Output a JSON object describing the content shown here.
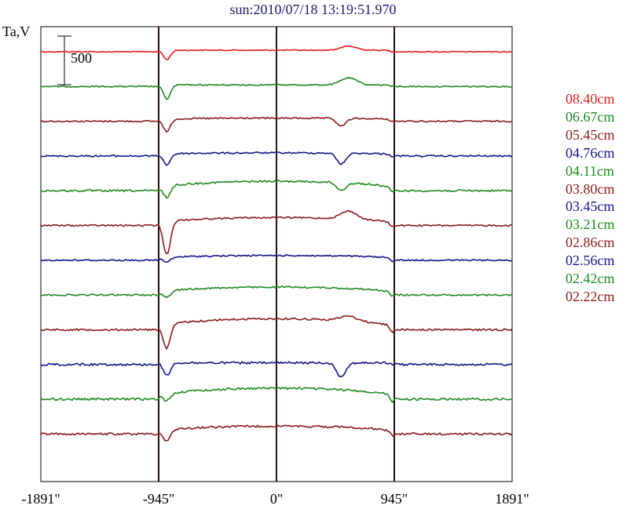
{
  "title": "sun:2010/07/18 13:19:51.970",
  "chart_data": {
    "type": "line",
    "ylabel": "Ta,V",
    "xlim": [
      -1891,
      1891
    ],
    "x_ticks": [
      {
        "value": -1891,
        "label": "-1891\""
      },
      {
        "value": -945,
        "label": "-945\""
      },
      {
        "value": 0,
        "label": "0\""
      },
      {
        "value": 945,
        "label": "945\""
      },
      {
        "value": 1891,
        "label": "1891\""
      }
    ],
    "vertical_lines": [
      -945,
      0,
      945
    ],
    "scale_bar": {
      "value": 500,
      "label": "500"
    },
    "grid": false,
    "legend_position": "right",
    "series": [
      {
        "name": "08.40cm",
        "color": "#e31a1a",
        "disk_rise": 0,
        "limb_dip": 12,
        "region_bump": 5,
        "region_dip": 0,
        "noise": 0.6
      },
      {
        "name": "06.67cm",
        "color": "#1e8a1e",
        "disk_rise": 0,
        "limb_dip": 18,
        "region_bump": 9,
        "region_dip": 0,
        "noise": 0.8
      },
      {
        "name": "05.45cm",
        "color": "#8b1a1a",
        "disk_rise": 2,
        "limb_dip": 16,
        "region_bump": 0,
        "region_dip": 10,
        "noise": 0.9
      },
      {
        "name": "04.76cm",
        "color": "#14148b",
        "disk_rise": 2,
        "limb_dip": 14,
        "region_bump": 0,
        "region_dip": 14,
        "noise": 1.0
      },
      {
        "name": "04.11cm",
        "color": "#1e8a1e",
        "disk_rise": 10,
        "limb_dip": 14,
        "region_bump": 0,
        "region_dip": 10,
        "noise": 1.2
      },
      {
        "name": "03.80cm",
        "color": "#8b1a1a",
        "disk_rise": 8,
        "limb_dip": 42,
        "region_bump": 10,
        "region_dip": 0,
        "noise": 1.0
      },
      {
        "name": "03.45cm",
        "color": "#14148b",
        "disk_rise": 4,
        "limb_dip": 6,
        "region_bump": 0,
        "region_dip": 0,
        "noise": 0.9
      },
      {
        "name": "03.21cm",
        "color": "#1e8a1e",
        "disk_rise": 8,
        "limb_dip": 8,
        "region_bump": 0,
        "region_dip": 0,
        "noise": 1.0
      },
      {
        "name": "02.86cm",
        "color": "#8b1a1a",
        "disk_rise": 12,
        "limb_dip": 30,
        "region_bump": 6,
        "region_dip": 0,
        "noise": 1.2
      },
      {
        "name": "02.56cm",
        "color": "#14148b",
        "disk_rise": 0,
        "limb_dip": 16,
        "region_bump": 0,
        "region_dip": 18,
        "noise": 1.4
      },
      {
        "name": "02.42cm",
        "color": "#1e8a1e",
        "disk_rise": 12,
        "limb_dip": 8,
        "region_bump": 0,
        "region_dip": 0,
        "noise": 1.4
      },
      {
        "name": "02.22cm",
        "color": "#8b1a1a",
        "disk_rise": 8,
        "limb_dip": 14,
        "region_bump": 0,
        "region_dip": 0,
        "noise": 1.3
      }
    ]
  }
}
